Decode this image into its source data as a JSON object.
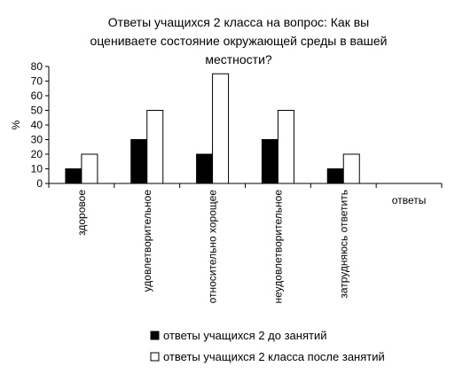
{
  "chart_data": {
    "type": "bar",
    "title_lines": [
      "Ответы учащихся 2 класса на вопрос: Как вы",
      "оцениваете состояние окружающей среды в вашей",
      "местности?"
    ],
    "ylabel": "%",
    "xlabel": "ответы",
    "categories": [
      "здоровое",
      "удовлетворительное",
      "относительно хорощее",
      "неудовлетворительное",
      "затрудняюсь ответить",
      ""
    ],
    "series": [
      {
        "name": "ответы учащихся 2 до занятий",
        "values": [
          10,
          30,
          20,
          30,
          10,
          null
        ],
        "color": "#000000"
      },
      {
        "name": "ответы учащихся 2 класса после занятий",
        "values": [
          20,
          50,
          75,
          50,
          20,
          null
        ],
        "color": "#ffffff"
      }
    ],
    "ylim": [
      0,
      80
    ],
    "yticks": [
      0,
      10,
      20,
      30,
      40,
      50,
      60,
      70,
      80
    ],
    "grid": false,
    "legend_position": "bottom"
  }
}
